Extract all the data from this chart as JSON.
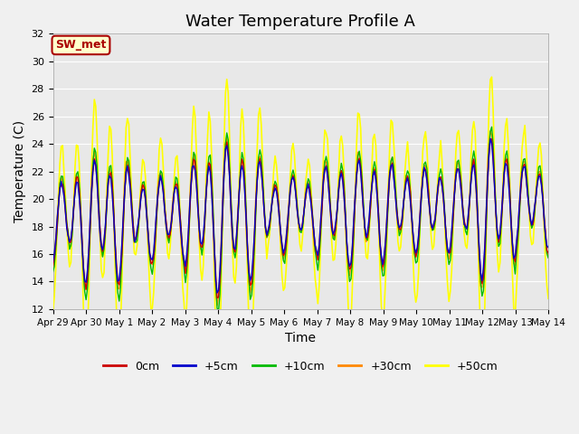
{
  "title": "Water Temperature Profile A",
  "xlabel": "Time",
  "ylabel": "Temperature (C)",
  "ylim": [
    12,
    32
  ],
  "xlim": [
    0,
    15
  ],
  "x_tick_labels": [
    "Apr 29",
    "Apr 30",
    "May 1",
    "May 2",
    "May 3",
    "May 4",
    "May 5",
    "May 6",
    "May 7",
    "May 8",
    "May 9",
    "May 10",
    "May 11",
    "May 12",
    "May 13",
    "May 14"
  ],
  "bg_color": "#e8e8e8",
  "fig_bg_color": "#f0f0f0",
  "grid_color": "#ffffff",
  "series": {
    "0cm": {
      "color": "#cc0000",
      "lw": 1.0
    },
    "+5cm": {
      "color": "#0000cc",
      "lw": 1.0
    },
    "+10cm": {
      "color": "#00bb00",
      "lw": 1.0
    },
    "+30cm": {
      "color": "#ff8800",
      "lw": 1.0
    },
    "+50cm": {
      "color": "#ffff00",
      "lw": 1.2
    }
  },
  "annotation_text": "SW_met",
  "annotation_color": "#aa0000",
  "annotation_bg": "#ffffcc",
  "annotation_border": "#aa0000",
  "title_fontsize": 13,
  "axis_fontsize": 10,
  "tick_fontsize": 8
}
